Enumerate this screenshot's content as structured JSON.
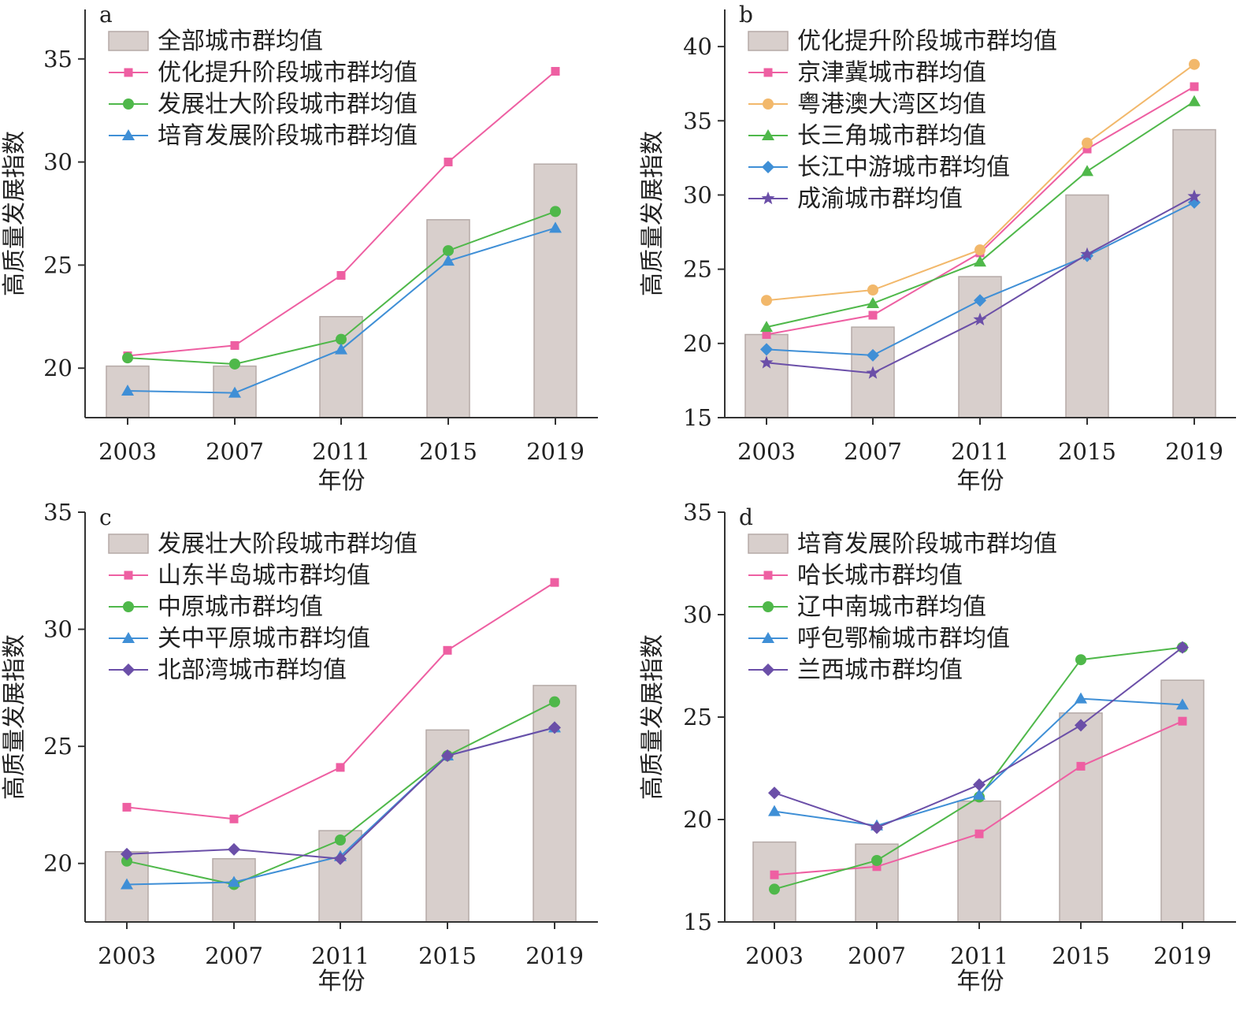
{
  "chart_data": [
    {
      "type": "bar",
      "panel": "a",
      "categories": [
        "2003",
        "2007",
        "2011",
        "2015",
        "2019"
      ],
      "ylim": [
        17.6,
        37.4
      ],
      "yticks": [
        20,
        25,
        30,
        35
      ],
      "xlabel": "年份",
      "ylabel": "高质量发展指数",
      "legend_position": "top-left",
      "bars": {
        "name": "全部城市群均值",
        "values": [
          20.1,
          20.1,
          22.5,
          27.2,
          29.9
        ]
      },
      "series": [
        {
          "name": "优化提升阶段城市群均值",
          "marker": "square",
          "color": "#ee5fa2",
          "values": [
            20.6,
            21.1,
            24.5,
            30.0,
            34.4
          ]
        },
        {
          "name": "发展壮大阶段城市群均值",
          "marker": "circle",
          "color": "#4fb84a",
          "values": [
            20.5,
            20.2,
            21.4,
            25.7,
            27.6
          ]
        },
        {
          "name": "培育发展阶段城市群均值",
          "marker": "triangle",
          "color": "#3f8fd6",
          "values": [
            18.9,
            18.8,
            20.9,
            25.2,
            26.8
          ]
        }
      ]
    },
    {
      "type": "bar",
      "panel": "b",
      "categories": [
        "2003",
        "2007",
        "2011",
        "2015",
        "2019"
      ],
      "ylim": [
        15,
        42.5
      ],
      "yticks": [
        15,
        20,
        25,
        30,
        35,
        40
      ],
      "xlabel": "年份",
      "ylabel": "高质量发展指数",
      "legend_position": "top-left",
      "bars": {
        "name": "优化提升阶段城市群均值",
        "values": [
          20.6,
          21.1,
          24.5,
          30.0,
          34.4
        ]
      },
      "series": [
        {
          "name": "京津冀城市群均值",
          "marker": "square",
          "color": "#ee5fa2",
          "values": [
            20.6,
            21.9,
            26.1,
            33.1,
            37.3
          ]
        },
        {
          "name": "粤港澳大湾区均值",
          "marker": "circle",
          "color": "#f2b86b",
          "values": [
            22.9,
            23.6,
            26.3,
            33.5,
            38.8
          ]
        },
        {
          "name": "长三角城市群均值",
          "marker": "triangle",
          "color": "#4fb84a",
          "values": [
            21.1,
            22.7,
            25.5,
            31.6,
            36.3
          ]
        },
        {
          "name": "长江中游城市群均值",
          "marker": "diamond",
          "color": "#3f8fd6",
          "values": [
            19.6,
            19.2,
            22.9,
            25.9,
            29.5
          ]
        },
        {
          "name": "成渝城市群均值",
          "marker": "star",
          "color": "#6b4fa8",
          "values": [
            18.7,
            18.0,
            21.6,
            26.0,
            29.9
          ]
        }
      ]
    },
    {
      "type": "bar",
      "panel": "c",
      "categories": [
        "2003",
        "2007",
        "2011",
        "2015",
        "2019"
      ],
      "ylim": [
        17.5,
        35
      ],
      "yticks": [
        20,
        25,
        30,
        35
      ],
      "xlabel": "年份",
      "ylabel": "高质量发展指数",
      "legend_position": "top-left",
      "bars": {
        "name": "发展壮大阶段城市群均值",
        "values": [
          20.5,
          20.2,
          21.4,
          25.7,
          27.6
        ]
      },
      "series": [
        {
          "name": "山东半岛城市群均值",
          "marker": "square",
          "color": "#ee5fa2",
          "values": [
            22.4,
            21.9,
            24.1,
            29.1,
            32.0
          ]
        },
        {
          "name": "中原城市群均值",
          "marker": "circle",
          "color": "#4fb84a",
          "values": [
            20.1,
            19.1,
            21.0,
            24.6,
            26.9
          ]
        },
        {
          "name": "关中平原城市群均值",
          "marker": "triangle",
          "color": "#3f8fd6",
          "values": [
            19.1,
            19.2,
            20.3,
            24.6,
            25.8
          ]
        },
        {
          "name": "北部湾城市群均值",
          "marker": "diamond",
          "color": "#6b4fa8",
          "values": [
            20.4,
            20.6,
            20.2,
            24.6,
            25.8
          ]
        }
      ]
    },
    {
      "type": "bar",
      "panel": "d",
      "categories": [
        "2003",
        "2007",
        "2011",
        "2015",
        "2019"
      ],
      "ylim": [
        15,
        35
      ],
      "yticks": [
        15,
        20,
        25,
        30,
        35
      ],
      "xlabel": "年份",
      "ylabel": "高质量发展指数",
      "legend_position": "top-left",
      "bars": {
        "name": "培育发展阶段城市群均值",
        "values": [
          18.9,
          18.8,
          20.9,
          25.2,
          26.8
        ]
      },
      "series": [
        {
          "name": "哈长城市群均值",
          "marker": "square",
          "color": "#ee5fa2",
          "values": [
            17.3,
            17.7,
            19.3,
            22.6,
            24.8
          ]
        },
        {
          "name": "辽中南城市群均值",
          "marker": "circle",
          "color": "#4fb84a",
          "values": [
            16.6,
            18.0,
            21.1,
            27.8,
            28.4
          ]
        },
        {
          "name": "呼包鄂榆城市群均值",
          "marker": "triangle",
          "color": "#3f8fd6",
          "values": [
            20.4,
            19.7,
            21.2,
            25.9,
            25.6
          ]
        },
        {
          "name": "兰西城市群均值",
          "marker": "diamond",
          "color": "#6b4fa8",
          "values": [
            21.3,
            19.6,
            21.7,
            24.6,
            28.4
          ]
        }
      ]
    }
  ],
  "colors": {
    "bar_fill": "#d8cfcc",
    "bar_stroke": "#b5aaa7",
    "axis": "#333333"
  }
}
